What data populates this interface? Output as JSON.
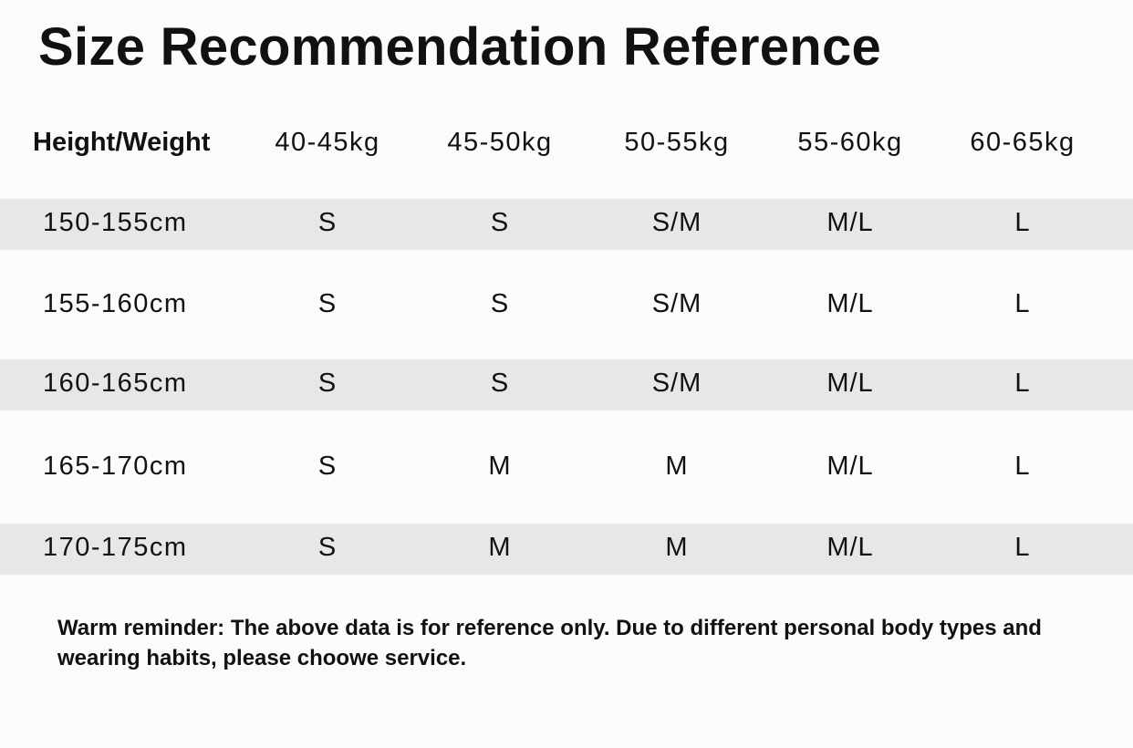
{
  "title": "Size Recommendation Reference",
  "table": {
    "header": [
      "Height/Weight",
      "40-45kg",
      "45-50kg",
      "50-55kg",
      "55-60kg",
      "60-65kg"
    ],
    "rows": [
      [
        "150-155cm",
        "S",
        "S",
        "S/M",
        "M/L",
        "L"
      ],
      [
        "155-160cm",
        "S",
        "S",
        "S/M",
        "M/L",
        "L"
      ],
      [
        "160-165cm",
        "S",
        "S",
        "S/M",
        "M/L",
        "L"
      ],
      [
        "165-170cm",
        "S",
        "M",
        "M",
        "M/L",
        "L"
      ],
      [
        "170-175cm",
        "S",
        "M",
        "M",
        "M/L",
        "L"
      ]
    ],
    "stripe_color": "#e7e7e7"
  },
  "note": "Warm reminder: The above data is for reference only. Due to different personal body types and wearing habits, please choowe service."
}
